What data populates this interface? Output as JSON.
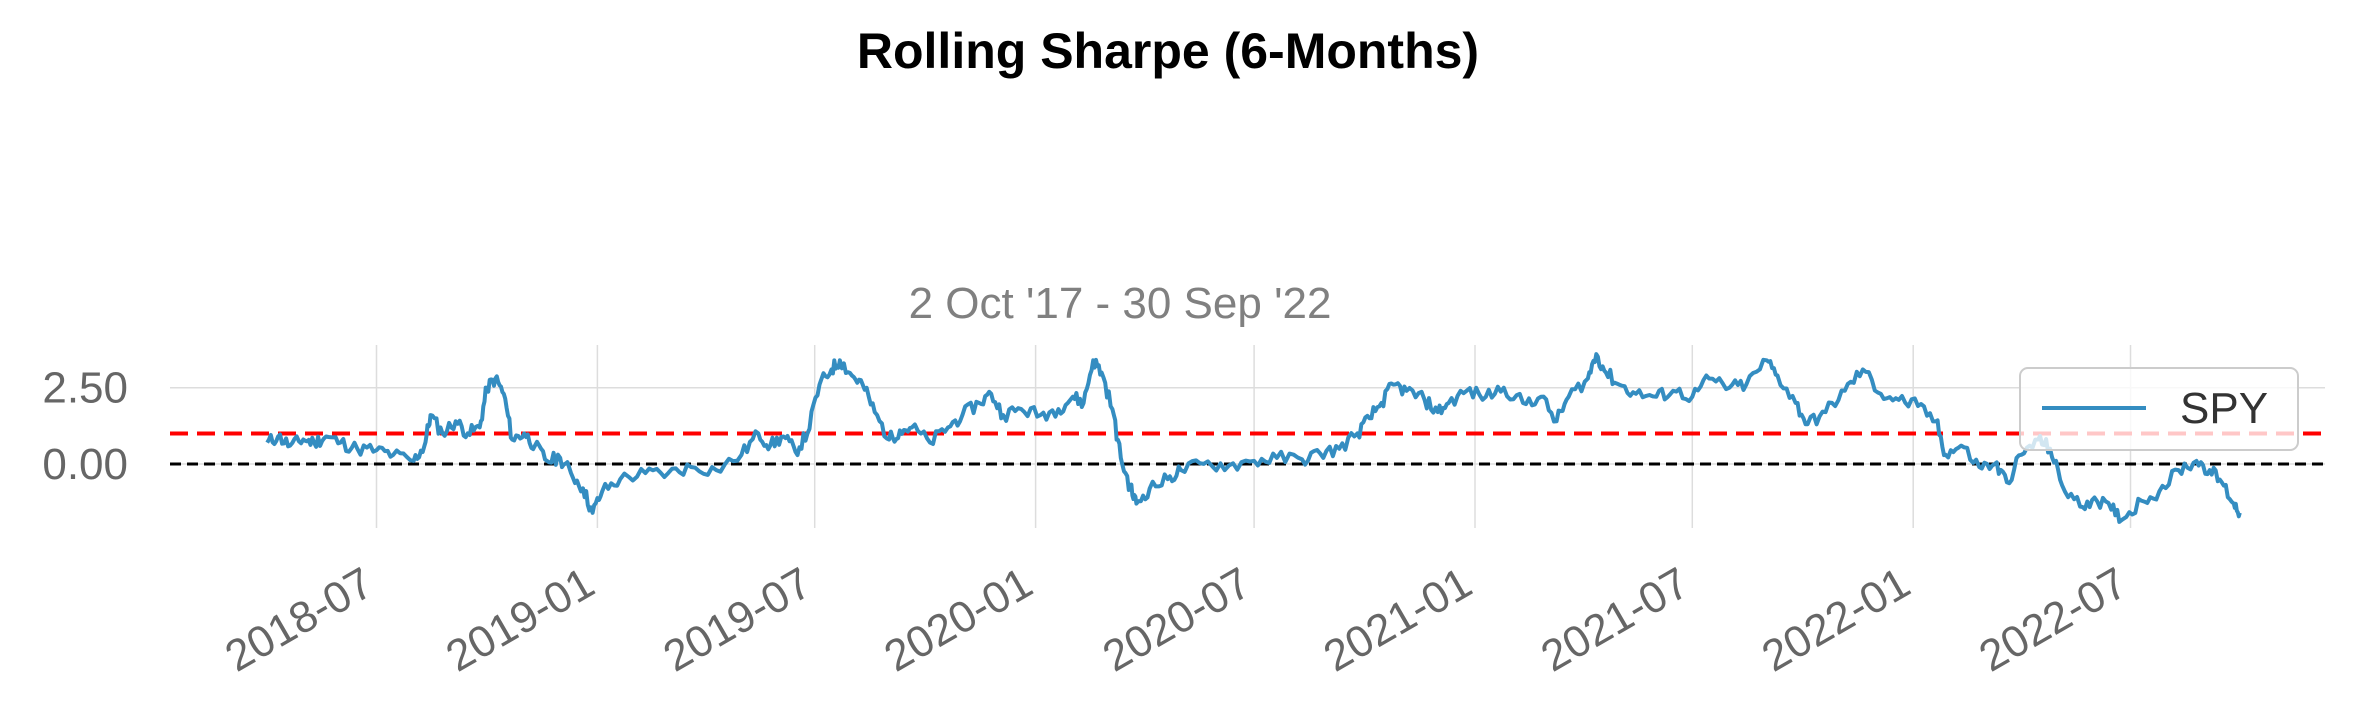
{
  "chart_data": {
    "type": "line",
    "title": "Rolling Sharpe (6-Months)",
    "subtitle": "2 Oct '17 - 30 Sep '22",
    "xlabel": "",
    "ylabel": "",
    "x_ticks": [
      "2018-07",
      "2019-01",
      "2019-07",
      "2020-01",
      "2020-07",
      "2021-01",
      "2021-07",
      "2022-01",
      "2022-07"
    ],
    "y_ticks": [
      "0.00",
      "2.50"
    ],
    "ylim": [
      -2.1,
      3.9
    ],
    "xlim": [
      "2018-01-10",
      "2022-12-10"
    ],
    "grid": true,
    "legend": "upper-right",
    "reference_lines": [
      {
        "y": 1.0,
        "style": "dashed",
        "color": "#ff0000"
      },
      {
        "y": 0.0,
        "style": "dashed",
        "color": "#000000"
      }
    ],
    "series": [
      {
        "name": "SPY",
        "color": "#348dc1",
        "points": [
          [
            "2018-04-01",
            0.7
          ],
          [
            "2018-04-10",
            0.9
          ],
          [
            "2018-04-20",
            0.6
          ],
          [
            "2018-05-01",
            0.8
          ],
          [
            "2018-05-10",
            0.7
          ],
          [
            "2018-05-20",
            0.9
          ],
          [
            "2018-06-01",
            0.7
          ],
          [
            "2018-06-15",
            0.5
          ],
          [
            "2018-07-01",
            0.45
          ],
          [
            "2018-07-15",
            0.3
          ],
          [
            "2018-08-01",
            0.1
          ],
          [
            "2018-08-10",
            0.6
          ],
          [
            "2018-08-15",
            1.6
          ],
          [
            "2018-08-25",
            1.0
          ],
          [
            "2018-09-05",
            1.4
          ],
          [
            "2018-09-15",
            1.0
          ],
          [
            "2018-09-25",
            1.2
          ],
          [
            "2018-10-01",
            2.5
          ],
          [
            "2018-10-08",
            2.8
          ],
          [
            "2018-10-15",
            2.3
          ],
          [
            "2018-10-22",
            0.8
          ],
          [
            "2018-11-01",
            1.0
          ],
          [
            "2018-11-10",
            0.6
          ],
          [
            "2018-11-20",
            0.1
          ],
          [
            "2018-12-01",
            0.2
          ],
          [
            "2018-12-10",
            -0.3
          ],
          [
            "2018-12-20",
            -0.8
          ],
          [
            "2018-12-28",
            -1.6
          ],
          [
            "2019-01-05",
            -0.9
          ],
          [
            "2019-01-20",
            -0.5
          ],
          [
            "2019-02-10",
            -0.3
          ],
          [
            "2019-03-01",
            -0.3
          ],
          [
            "2019-03-20",
            -0.1
          ],
          [
            "2019-04-10",
            -0.2
          ],
          [
            "2019-05-01",
            0.3
          ],
          [
            "2019-05-15",
            1.0
          ],
          [
            "2019-05-25",
            0.6
          ],
          [
            "2019-06-05",
            0.9
          ],
          [
            "2019-06-15",
            0.4
          ],
          [
            "2019-06-25",
            1.0
          ],
          [
            "2019-07-05",
            2.6
          ],
          [
            "2019-07-15",
            3.1
          ],
          [
            "2019-07-22",
            3.4
          ],
          [
            "2019-08-01",
            2.9
          ],
          [
            "2019-08-10",
            2.6
          ],
          [
            "2019-08-20",
            1.7
          ],
          [
            "2019-09-01",
            0.8
          ],
          [
            "2019-09-10",
            1.1
          ],
          [
            "2019-09-20",
            1.2
          ],
          [
            "2019-10-05",
            0.7
          ],
          [
            "2019-10-20",
            1.2
          ],
          [
            "2019-11-01",
            1.6
          ],
          [
            "2019-11-15",
            2.0
          ],
          [
            "2019-11-25",
            2.3
          ],
          [
            "2019-12-05",
            1.6
          ],
          [
            "2019-12-20",
            1.8
          ],
          [
            "2020-01-05",
            1.6
          ],
          [
            "2020-01-20",
            1.8
          ],
          [
            "2020-02-01",
            2.2
          ],
          [
            "2020-02-10",
            2.0
          ],
          [
            "2020-02-18",
            3.4
          ],
          [
            "2020-02-25",
            3.0
          ],
          [
            "2020-03-05",
            1.8
          ],
          [
            "2020-03-12",
            0.2
          ],
          [
            "2020-03-20",
            -0.8
          ],
          [
            "2020-03-25",
            -1.3
          ],
          [
            "2020-04-05",
            -0.8
          ],
          [
            "2020-04-20",
            -0.5
          ],
          [
            "2020-05-01",
            -0.2
          ],
          [
            "2020-05-20",
            0.0
          ],
          [
            "2020-06-10",
            -0.05
          ],
          [
            "2020-07-01",
            0.1
          ],
          [
            "2020-07-20",
            0.2
          ],
          [
            "2020-08-10",
            0.15
          ],
          [
            "2020-08-25",
            0.35
          ],
          [
            "2020-09-10",
            0.5
          ],
          [
            "2020-09-25",
            1.0
          ],
          [
            "2020-10-05",
            1.5
          ],
          [
            "2020-10-15",
            2.0
          ],
          [
            "2020-10-25",
            2.6
          ],
          [
            "2020-11-05",
            2.4
          ],
          [
            "2020-11-20",
            2.1
          ],
          [
            "2020-12-01",
            1.7
          ],
          [
            "2020-12-10",
            2.0
          ],
          [
            "2020-12-25",
            2.4
          ],
          [
            "2021-01-10",
            2.2
          ],
          [
            "2021-01-25",
            2.5
          ],
          [
            "2021-02-10",
            2.0
          ],
          [
            "2021-02-25",
            2.2
          ],
          [
            "2021-03-10",
            1.4
          ],
          [
            "2021-03-20",
            2.2
          ],
          [
            "2021-04-05",
            2.8
          ],
          [
            "2021-04-12",
            3.6
          ],
          [
            "2021-04-20",
            3.0
          ],
          [
            "2021-05-01",
            2.6
          ],
          [
            "2021-05-15",
            2.3
          ],
          [
            "2021-06-01",
            2.2
          ],
          [
            "2021-06-15",
            2.4
          ],
          [
            "2021-07-01",
            2.2
          ],
          [
            "2021-07-15",
            2.8
          ],
          [
            "2021-08-01",
            2.5
          ],
          [
            "2021-08-15",
            2.6
          ],
          [
            "2021-09-01",
            3.4
          ],
          [
            "2021-09-10",
            2.9
          ],
          [
            "2021-09-25",
            2.0
          ],
          [
            "2021-10-05",
            1.3
          ],
          [
            "2021-10-20",
            1.7
          ],
          [
            "2021-11-05",
            2.4
          ],
          [
            "2021-11-20",
            3.1
          ],
          [
            "2021-12-05",
            2.3
          ],
          [
            "2021-12-20",
            2.1
          ],
          [
            "2022-01-05",
            1.9
          ],
          [
            "2022-01-20",
            1.4
          ],
          [
            "2022-01-28",
            0.3
          ],
          [
            "2022-02-10",
            0.6
          ],
          [
            "2022-02-25",
            -0.1
          ],
          [
            "2022-03-10",
            0.0
          ],
          [
            "2022-03-20",
            -0.6
          ],
          [
            "2022-04-01",
            0.3
          ],
          [
            "2022-04-15",
            0.8
          ],
          [
            "2022-04-25",
            0.5
          ],
          [
            "2022-05-05",
            -0.7
          ],
          [
            "2022-05-20",
            -1.4
          ],
          [
            "2022-06-01",
            -1.1
          ],
          [
            "2022-06-15",
            -1.5
          ],
          [
            "2022-06-25",
            -1.8
          ],
          [
            "2022-07-10",
            -1.2
          ],
          [
            "2022-07-25",
            -0.9
          ],
          [
            "2022-08-10",
            -0.2
          ],
          [
            "2022-08-25",
            0.1
          ],
          [
            "2022-09-05",
            -0.2
          ],
          [
            "2022-09-15",
            -0.6
          ],
          [
            "2022-09-25",
            -1.3
          ],
          [
            "2022-09-30",
            -1.6
          ]
        ]
      }
    ]
  }
}
